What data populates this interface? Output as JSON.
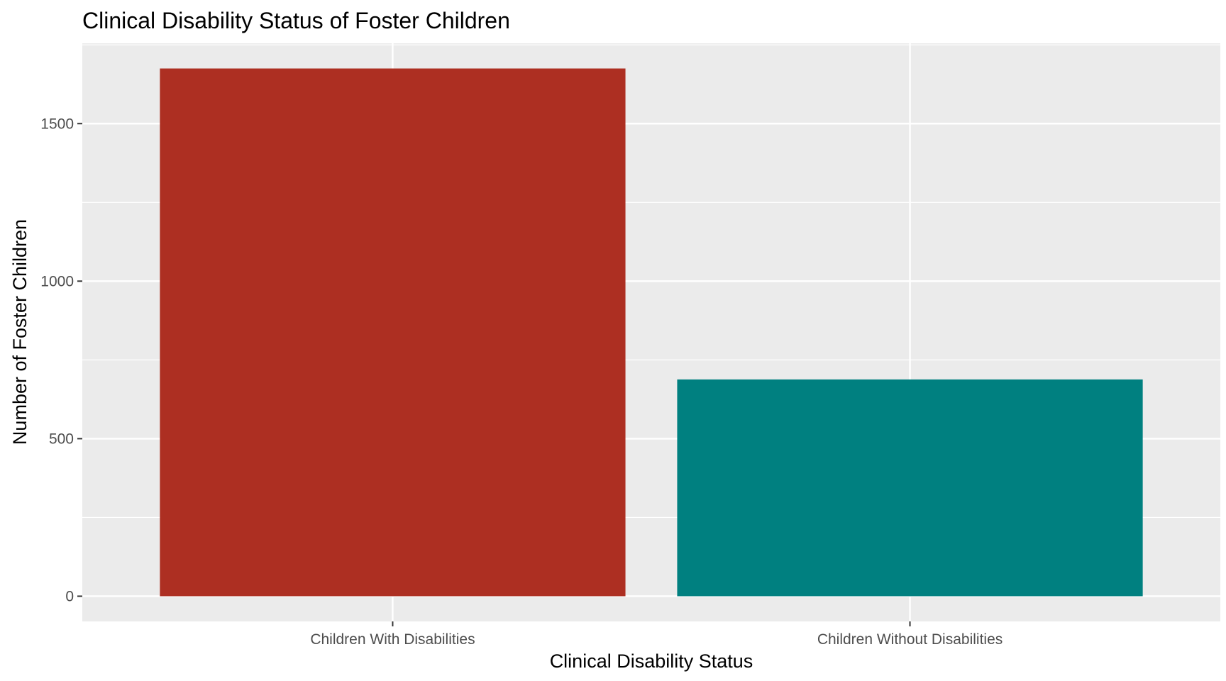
{
  "chart_data": {
    "type": "bar",
    "title": "Clinical Disability Status of Foster Children",
    "xlabel": "Clinical Disability Status",
    "ylabel": "Number of Foster Children",
    "categories": [
      "Children With Disabilities",
      "Children Without Disabilities"
    ],
    "values": [
      1675,
      688
    ],
    "bar_colors": [
      "#AD2F22",
      "#008080"
    ],
    "ylim": [
      -80,
      1755
    ],
    "y_ticks": [
      0,
      500,
      1000,
      1500
    ],
    "y_minor_ticks": [
      250,
      750,
      1250,
      1750
    ],
    "grid": true,
    "legend": "none",
    "panel_background": "#EBEBEB",
    "grid_color": "#FFFFFF"
  }
}
